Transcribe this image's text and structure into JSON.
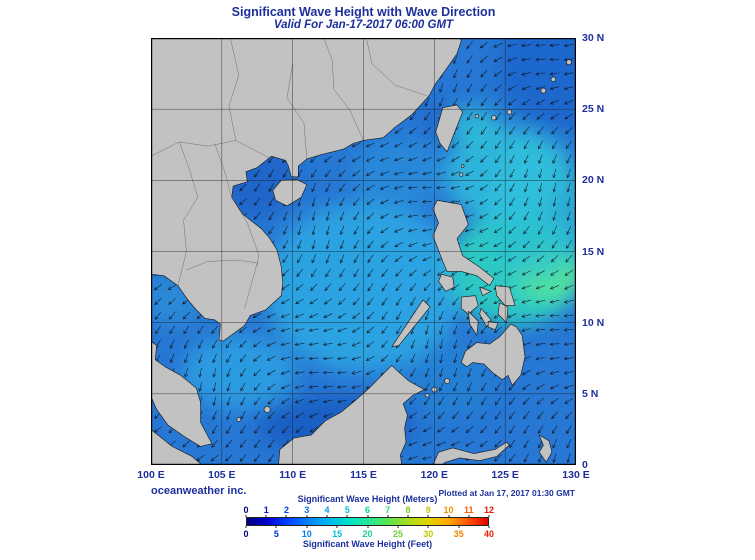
{
  "header": {
    "title": "Significant Wave Height with Wave Direction",
    "subtitle": "Valid For Jan-17-2017 06:00 GMT"
  },
  "map": {
    "lon_labels": [
      "100 E",
      "105 E",
      "110 E",
      "115 E",
      "120 E",
      "125 E",
      "130 E"
    ],
    "lat_labels": [
      "30 N",
      "25 N",
      "20 N",
      "15 N",
      "10 N",
      "5 N",
      "0"
    ]
  },
  "footer": {
    "credit": "oceanweather inc.",
    "plotted": "Plotted at Jan 17, 2017 01:30 GMT"
  },
  "colors": {
    "ink": "#1c2f9c",
    "land": "#c2c2c2",
    "ocean_base": "#2777d4"
  },
  "colorbar": {
    "title_meters": "Significant Wave Height (Meters)",
    "title_feet": "Significant Wave Height (Feet)",
    "meters_ticks": [
      {
        "label": "0",
        "color": "#000085"
      },
      {
        "label": "1",
        "color": "#0013c8"
      },
      {
        "label": "2",
        "color": "#003cee"
      },
      {
        "label": "3",
        "color": "#0070f8"
      },
      {
        "label": "4",
        "color": "#009cec"
      },
      {
        "label": "5",
        "color": "#00c2d4"
      },
      {
        "label": "6",
        "color": "#00d8a4"
      },
      {
        "label": "7",
        "color": "#2cd86c"
      },
      {
        "label": "8",
        "color": "#84cc2c"
      },
      {
        "label": "9",
        "color": "#c8c400"
      },
      {
        "label": "10",
        "color": "#ee9800"
      },
      {
        "label": "11",
        "color": "#f55e00"
      },
      {
        "label": "12",
        "color": "#e51800"
      }
    ],
    "feet_ticks": [
      {
        "label": "0",
        "color": "#000085"
      },
      {
        "label": "5",
        "color": "#0030e0"
      },
      {
        "label": "10",
        "color": "#0080f4"
      },
      {
        "label": "15",
        "color": "#00c0d8"
      },
      {
        "label": "20",
        "color": "#14d494"
      },
      {
        "label": "25",
        "color": "#6cd438"
      },
      {
        "label": "30",
        "color": "#c2c800"
      },
      {
        "label": "35",
        "color": "#f08400"
      },
      {
        "label": "40",
        "color": "#e52000"
      }
    ],
    "gradient": [
      "#000080",
      "#0000cc",
      "#0040ff",
      "#0080ff",
      "#00b4f4",
      "#00e0cc",
      "#20e89c",
      "#5ce454",
      "#a4dc20",
      "#e2d400",
      "#ffaa00",
      "#ff5400",
      "#df0000"
    ]
  }
}
